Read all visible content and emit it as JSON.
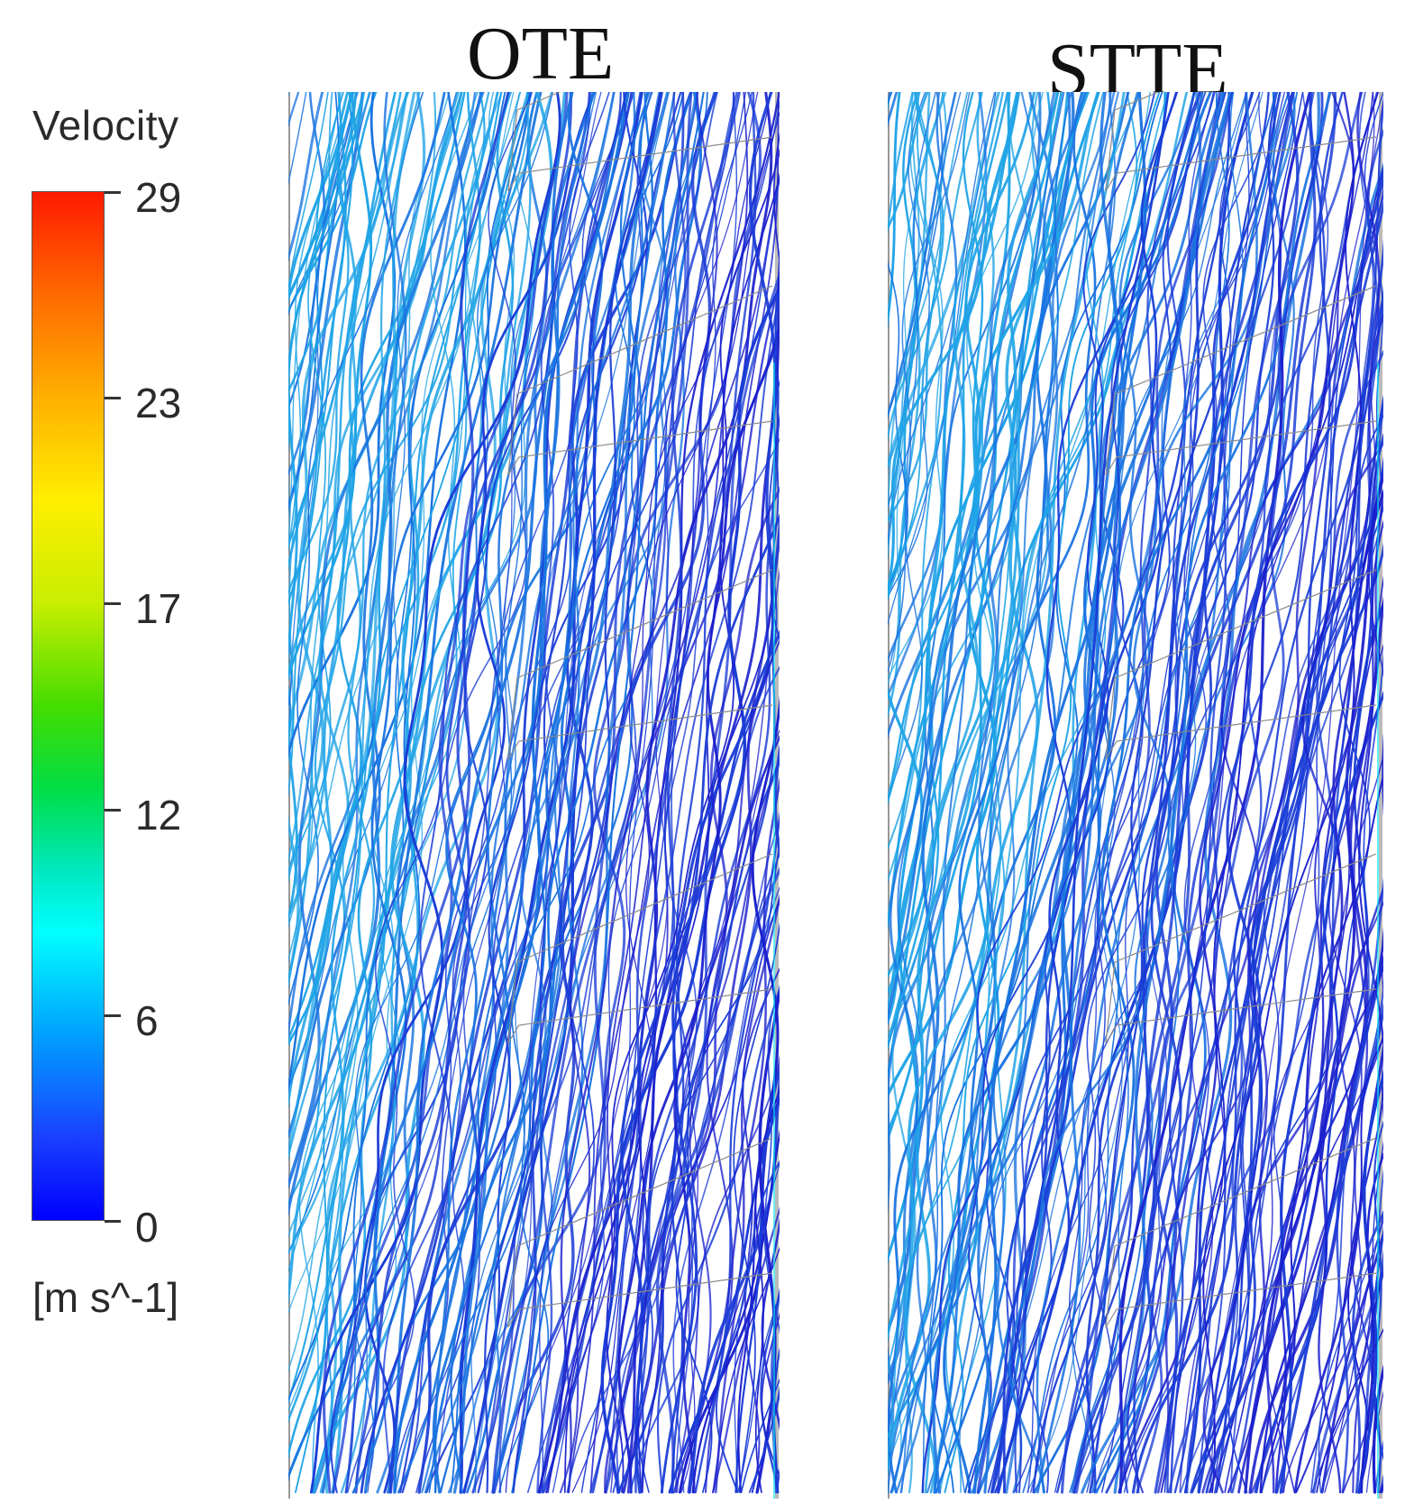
{
  "legend": {
    "title": "Velocity",
    "unit": "[m s^-1]",
    "ticks": [
      "29",
      "23",
      "17",
      "12",
      "6",
      "0"
    ],
    "colors": [
      "#ff0000",
      "#ff8000",
      "#ffff00",
      "#00d000",
      "#00ffff",
      "#0000ff"
    ]
  },
  "panels": [
    {
      "title": "OTE"
    },
    {
      "title": "STTE"
    }
  ],
  "streamline_colors": {
    "light": "#1fa3e6",
    "mid": "#1a73e0",
    "dark": "#1a3cd6",
    "deep": "#1a1fcc",
    "edge_cyan": "#00e5ee"
  }
}
